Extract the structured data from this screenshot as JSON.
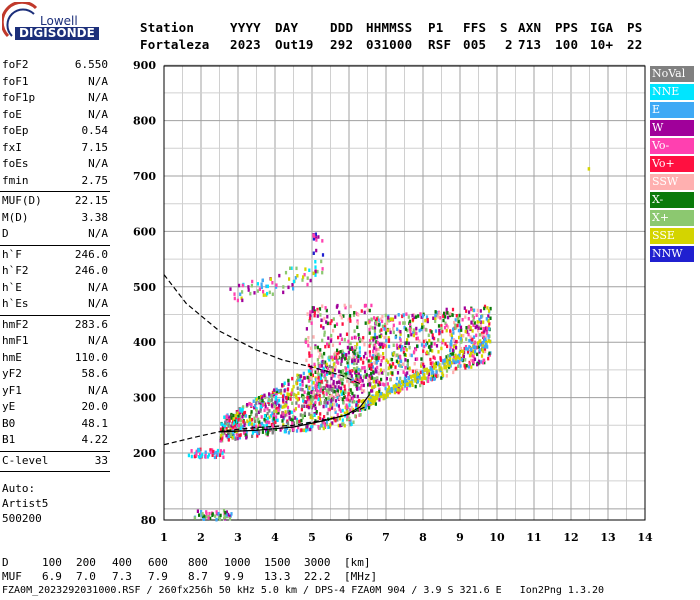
{
  "logo": {
    "line1": "Lowell",
    "line2": "DIGISONDE"
  },
  "header": {
    "labels": [
      "Station",
      "YYYY",
      "DAY",
      "DDD",
      "HHMMSS",
      "P1",
      "FFS",
      "S",
      "AXN",
      "PPS",
      "IGA",
      "PS"
    ],
    "values": [
      "Fortaleza",
      "2023",
      "Out19",
      "292",
      "031000",
      "RSF",
      "005",
      "2",
      "713",
      "100",
      "10+",
      "22"
    ]
  },
  "side_params": [
    {
      "label": "foF2",
      "value": "6.550"
    },
    {
      "label": "foF1",
      "value": "N/A"
    },
    {
      "label": "foF1p",
      "value": "N/A"
    },
    {
      "label": "foE",
      "value": "N/A"
    },
    {
      "label": "foEp",
      "value": "0.54"
    },
    {
      "label": "fxI",
      "value": "7.15"
    },
    {
      "label": "foEs",
      "value": "N/A"
    },
    {
      "label": "fmin",
      "value": "2.75"
    },
    {
      "label": "MUF(D)",
      "value": "22.15"
    },
    {
      "label": "M(D)",
      "value": "3.38"
    },
    {
      "label": "D",
      "value": "N/A"
    },
    {
      "label": "h`F",
      "value": "246.0"
    },
    {
      "label": "h`F2",
      "value": "246.0"
    },
    {
      "label": "h`E",
      "value": "N/A"
    },
    {
      "label": "h`Es",
      "value": "N/A"
    },
    {
      "label": "hmF2",
      "value": "283.6"
    },
    {
      "label": "hmF1",
      "value": "N/A"
    },
    {
      "label": "hmE",
      "value": "110.0"
    },
    {
      "label": "yF2",
      "value": "58.6"
    },
    {
      "label": "yF1",
      "value": "N/A"
    },
    {
      "label": "yE",
      "value": "20.0"
    },
    {
      "label": "B0",
      "value": "48.1"
    },
    {
      "label": "B1",
      "value": "4.22"
    },
    {
      "label": "C-level",
      "value": "33"
    }
  ],
  "side_footer": {
    "line1": "Auto:",
    "line2": "Artist5",
    "line3": "500200"
  },
  "legend": [
    {
      "label": "NoVal",
      "color": "#808080"
    },
    {
      "label": "NNE",
      "color": "#00e5ff"
    },
    {
      "label": "E",
      "color": "#3fa9f5"
    },
    {
      "label": "W",
      "color": "#a0009a"
    },
    {
      "label": "Vo-",
      "color": "#ff40b0"
    },
    {
      "label": "Vo+",
      "color": "#ff1040"
    },
    {
      "label": "SSW",
      "color": "#ffb0b0"
    },
    {
      "label": "X-",
      "color": "#0a7a0a"
    },
    {
      "label": "X+",
      "color": "#8cc870"
    },
    {
      "label": "SSE",
      "color": "#d4d400"
    },
    {
      "label": "NNW",
      "color": "#2020d0"
    }
  ],
  "muf_table": {
    "d_label": "D",
    "d_values": [
      "100",
      "200",
      "400",
      "600",
      "800",
      "1000",
      "1500",
      "3000"
    ],
    "d_unit": "[km]",
    "muf_label": "MUF",
    "muf_values": [
      "6.9",
      "7.0",
      "7.3",
      "7.9",
      "8.7",
      "9.9",
      "13.3",
      "22.2"
    ],
    "muf_unit": "[MHz]"
  },
  "footer": "FZA0M_2023292031000.RSF / 260fx256h 50 kHz 5.0 km / DPS-4 FZA0M 904 / 3.9 S 321.6 E   Ion2Png 1.3.20",
  "chart_data": {
    "type": "scatter",
    "x_ticks": [
      1,
      2,
      3,
      4,
      5,
      6,
      7,
      8,
      9,
      10,
      11,
      12,
      13,
      14
    ],
    "y_ticks": [
      80,
      200,
      300,
      400,
      500,
      600,
      700,
      800,
      900
    ],
    "xlim": [
      1,
      14
    ],
    "ylim": [
      80,
      900
    ],
    "grid": true,
    "clusters": [
      {
        "name": "low",
        "x": [
          1.8,
          2.8
        ],
        "y": [
          82,
          100
        ]
      },
      {
        "name": "bottom-left",
        "x": [
          1.6,
          2.6
        ],
        "y": [
          195,
          210
        ]
      },
      {
        "name": "F-trace-main",
        "x": [
          2.5,
          6.3
        ],
        "y": [
          225,
          410
        ]
      },
      {
        "name": "F-trace-upper",
        "x": [
          4.8,
          6.8
        ],
        "y": [
          280,
          470
        ]
      },
      {
        "name": "F-spread",
        "x": [
          6.5,
          9.8
        ],
        "y": [
          290,
          470
        ]
      },
      {
        "name": "second-hop",
        "x": [
          2.7,
          5.3
        ],
        "y": [
          470,
          560
        ]
      },
      {
        "name": "high",
        "x": [
          5.0,
          5.3
        ],
        "y": [
          560,
          600
        ]
      }
    ],
    "xtrace": {
      "x": [
        6.3,
        9.8
      ],
      "y": [
        290,
        405
      ]
    },
    "profile_curve": [
      [
        2.5,
        238
      ],
      [
        3.5,
        241
      ],
      [
        4.5,
        247
      ],
      [
        5.3,
        258
      ],
      [
        5.9,
        268
      ],
      [
        6.3,
        283
      ],
      [
        6.55,
        305
      ]
    ],
    "dashed_curve": [
      [
        1.0,
        215
      ],
      [
        1.8,
        228
      ],
      [
        2.6,
        240
      ],
      [
        3.5,
        246
      ],
      [
        4.5,
        250
      ],
      [
        5.5,
        262
      ],
      [
        6.0,
        270
      ],
      [
        6.5,
        285
      ]
    ],
    "dashed_upper": [
      [
        1.0,
        522
      ],
      [
        1.6,
        470
      ],
      [
        2.5,
        420
      ],
      [
        3.5,
        386
      ],
      [
        4.2,
        368
      ],
      [
        5.0,
        355
      ],
      [
        5.8,
        340
      ],
      [
        6.3,
        325
      ]
    ],
    "isolated_point": [
      12.45,
      716
    ]
  }
}
